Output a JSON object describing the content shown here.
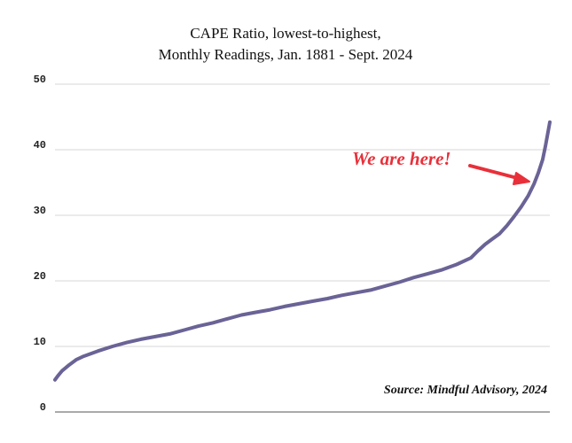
{
  "chart_data": {
    "type": "line",
    "title": [
      "CAPE Ratio, lowest-to-highest,",
      "Monthly Readings, Jan. 1881 - Sept. 2024"
    ],
    "xlabel": "",
    "ylabel": "",
    "ylim": [
      0,
      50
    ],
    "yticks": [
      "0",
      "10",
      "20",
      "30",
      "40",
      "50"
    ],
    "grid": "horizontal",
    "x_range": [
      0,
      1725
    ],
    "series": [
      {
        "color": "#6a6396",
        "points": [
          [
            0,
            4.9
          ],
          [
            10,
            5.5
          ],
          [
            25,
            6.3
          ],
          [
            50,
            7.2
          ],
          [
            75,
            8.0
          ],
          [
            100,
            8.5
          ],
          [
            150,
            9.3
          ],
          [
            200,
            10.0
          ],
          [
            250,
            10.6
          ],
          [
            300,
            11.1
          ],
          [
            350,
            11.5
          ],
          [
            400,
            11.9
          ],
          [
            450,
            12.5
          ],
          [
            500,
            13.1
          ],
          [
            550,
            13.6
          ],
          [
            600,
            14.2
          ],
          [
            650,
            14.8
          ],
          [
            700,
            15.2
          ],
          [
            750,
            15.6
          ],
          [
            800,
            16.1
          ],
          [
            850,
            16.5
          ],
          [
            900,
            16.9
          ],
          [
            950,
            17.3
          ],
          [
            1000,
            17.8
          ],
          [
            1050,
            18.2
          ],
          [
            1100,
            18.6
          ],
          [
            1150,
            19.2
          ],
          [
            1200,
            19.8
          ],
          [
            1250,
            20.5
          ],
          [
            1300,
            21.1
          ],
          [
            1350,
            21.7
          ],
          [
            1400,
            22.5
          ],
          [
            1450,
            23.5
          ],
          [
            1475,
            24.6
          ],
          [
            1500,
            25.6
          ],
          [
            1525,
            26.4
          ],
          [
            1550,
            27.2
          ],
          [
            1575,
            28.4
          ],
          [
            1600,
            29.8
          ],
          [
            1625,
            31.3
          ],
          [
            1650,
            33.0
          ],
          [
            1670,
            34.8
          ],
          [
            1685,
            36.5
          ],
          [
            1700,
            38.5
          ],
          [
            1710,
            40.6
          ],
          [
            1718,
            42.5
          ],
          [
            1725,
            44.2
          ]
        ]
      }
    ],
    "annotation": {
      "text": "We are here!",
      "color": "#e8303a"
    },
    "source": "Source: Mindful Advisory, 2024"
  }
}
